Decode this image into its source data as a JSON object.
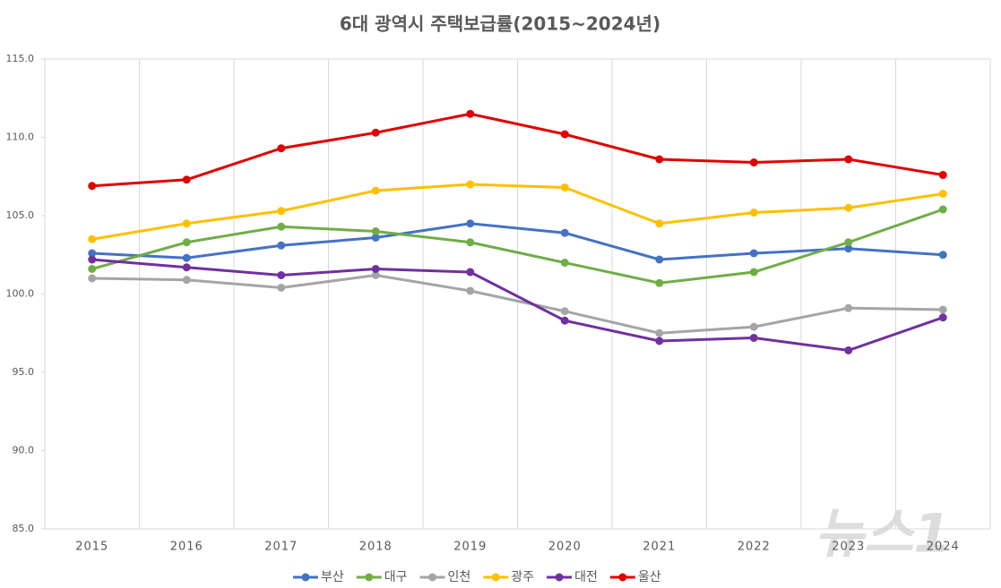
{
  "chart_data": {
    "type": "line",
    "title": "6대 광역시 주택보급률(2015~2024년)",
    "categories": [
      "2015",
      "2016",
      "2017",
      "2018",
      "2019",
      "2020",
      "2021",
      "2022",
      "2023",
      "2024"
    ],
    "series": [
      {
        "name": "부산",
        "color": "#4472c4",
        "values": [
          102.6,
          102.3,
          103.1,
          103.6,
          104.5,
          103.9,
          102.2,
          102.6,
          102.9,
          102.5
        ]
      },
      {
        "name": "대구",
        "color": "#70ad47",
        "values": [
          101.6,
          103.3,
          104.3,
          104.0,
          103.3,
          102.0,
          100.7,
          101.4,
          103.3,
          105.4
        ]
      },
      {
        "name": "인천",
        "color": "#a5a5a5",
        "values": [
          101.0,
          100.9,
          100.4,
          101.2,
          100.2,
          98.9,
          97.5,
          97.9,
          99.1,
          99.0
        ]
      },
      {
        "name": "광주",
        "color": "#ffc000",
        "values": [
          103.5,
          104.5,
          105.3,
          106.6,
          107.0,
          106.8,
          104.5,
          105.2,
          105.5,
          106.4
        ]
      },
      {
        "name": "대전",
        "color": "#7030a0",
        "values": [
          102.2,
          101.7,
          101.2,
          101.6,
          101.4,
          98.3,
          97.0,
          97.2,
          96.4,
          98.5
        ]
      },
      {
        "name": "울산",
        "color": "#e00000",
        "values": [
          106.9,
          107.3,
          109.3,
          110.3,
          111.5,
          110.2,
          108.6,
          108.4,
          108.6,
          107.6
        ]
      }
    ],
    "ylim": [
      85,
      115
    ],
    "yticks": [
      {
        "value": 85,
        "label": "85.0"
      },
      {
        "value": 90,
        "label": "90.0"
      },
      {
        "value": 95,
        "label": "95.0"
      },
      {
        "value": 100,
        "label": "100.0"
      },
      {
        "value": 105,
        "label": "105.0"
      },
      {
        "value": 110,
        "label": "110.0"
      },
      {
        "value": 115,
        "label": "115.0"
      }
    ],
    "grid": true,
    "legend": "bottom",
    "watermark": "뉴스1"
  }
}
